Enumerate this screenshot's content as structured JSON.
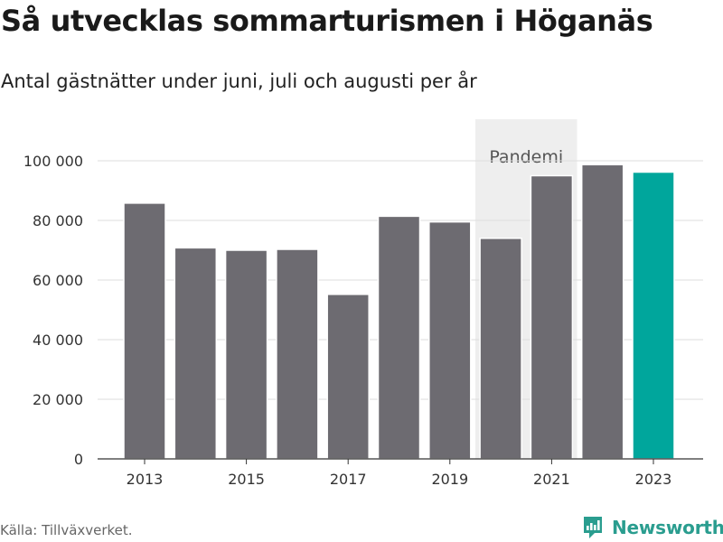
{
  "title": "Så utvecklas sommarturismen i Höganäs",
  "subtitle": "Antal gästnätter under juni, juli och augusti per år",
  "source": "Källa: Tillväxverket.",
  "brand": {
    "name": "Newsworthy",
    "logo_icon": "newsworthy-logo-icon"
  },
  "colors": {
    "bar": "#6d6b71",
    "highlight": "#00a69c",
    "band": "#eeeeee",
    "grid": "#dddddd",
    "brand": "#2a9d8f"
  },
  "chart_data": {
    "type": "bar",
    "title": "Så utvecklas sommarturismen i Höganäs",
    "subtitle": "Antal gästnätter under juni, juli och augusti per år",
    "xlabel": "",
    "ylabel": "",
    "categories": [
      2013,
      2014,
      2015,
      2016,
      2017,
      2018,
      2019,
      2020,
      2021,
      2022,
      2023
    ],
    "values": [
      85800,
      70800,
      70000,
      70300,
      55200,
      81400,
      79500,
      74000,
      95000,
      98700,
      96200
    ],
    "highlight_category": 2023,
    "ylim": [
      0,
      100000
    ],
    "y_ticks": [
      0,
      20000,
      40000,
      60000,
      80000,
      100000
    ],
    "y_tick_labels": [
      "0",
      "20 000",
      "40 000",
      "60 000",
      "80 000",
      "100 000"
    ],
    "x_tick_labels": [
      2013,
      2015,
      2017,
      2019,
      2021,
      2023
    ],
    "grid": true,
    "annotation": {
      "label": "Pandemi",
      "from": 2020,
      "to": 2021
    }
  }
}
